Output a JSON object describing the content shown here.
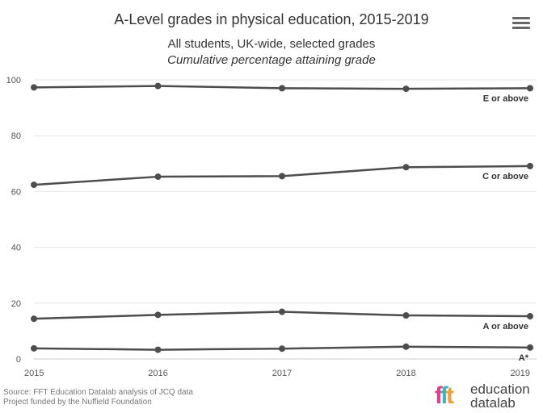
{
  "header": {
    "title": "A-Level grades in physical education, 2015-2019",
    "subtitle_line1": "All students, UK-wide, selected grades",
    "subtitle_line2": "Cumulative percentage attaining grade"
  },
  "footer": {
    "source": "Source: FFT Education Datalab analysis of JCQ data",
    "funding": "Project funded by the Nuffield Foundation"
  },
  "logo": {
    "mark_1": "f",
    "mark_2": "f",
    "mark_3": "t",
    "line1": "education",
    "line2": "datalab"
  },
  "icons": {
    "menu": "hamburger-menu-icon"
  },
  "colors": {
    "line": "#4d4d4d",
    "grid": "#e6e6e6",
    "text": "#333333"
  },
  "chart_data": {
    "type": "line",
    "x": [
      "2015",
      "2016",
      "2017",
      "2018",
      "2019"
    ],
    "y_ticks": [
      "0",
      "20",
      "40",
      "60",
      "80",
      "100"
    ],
    "ylim": [
      0,
      100
    ],
    "grid": true,
    "series": [
      {
        "name": "E or above",
        "values": [
          97.3,
          97.8,
          97.0,
          96.8,
          97.0
        ]
      },
      {
        "name": "C or above",
        "values": [
          62.4,
          65.3,
          65.5,
          68.7,
          69.1
        ]
      },
      {
        "name": "A or above",
        "values": [
          14.4,
          15.8,
          16.9,
          15.6,
          15.3
        ]
      },
      {
        "name": "A*",
        "values": [
          3.8,
          3.3,
          3.7,
          4.4,
          4.1
        ]
      }
    ]
  }
}
